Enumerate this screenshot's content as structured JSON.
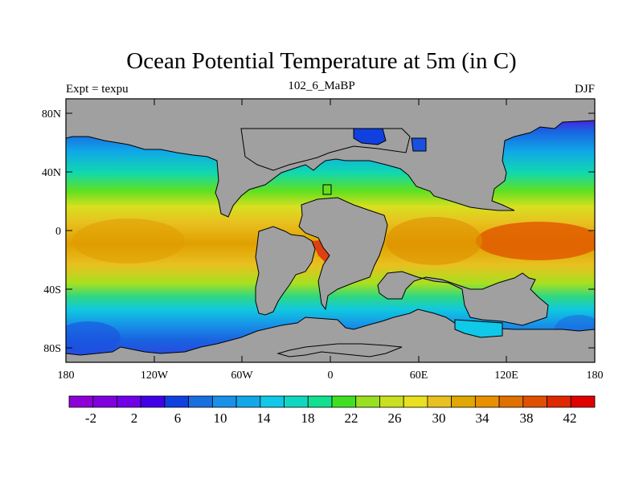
{
  "figure": {
    "title": "Ocean Potential Temperature at 5m (in C)",
    "left_label": "Expt = texpu",
    "center_label": "102_6_MaBP",
    "right_label": "DJF"
  },
  "axes": {
    "lat_ticks": [
      "80N",
      "40N",
      "0",
      "40S",
      "80S"
    ],
    "lon_ticks": [
      "180",
      "120W",
      "60W",
      "0",
      "60E",
      "120E",
      "180"
    ]
  },
  "colorbar": {
    "labels": [
      "-2",
      "2",
      "6",
      "10",
      "14",
      "18",
      "22",
      "26",
      "30",
      "34",
      "38",
      "42"
    ],
    "colors": [
      "#8e00d8",
      "#8000e0",
      "#7000e8",
      "#4000e8",
      "#1040e0",
      "#1870e0",
      "#1a90e8",
      "#10a8e8",
      "#10c8e8",
      "#10d8c0",
      "#10e090",
      "#40e020",
      "#98e020",
      "#c8e020",
      "#e8e020",
      "#e8c020",
      "#e0a800",
      "#e89000",
      "#e07000",
      "#e05000",
      "#e02800",
      "#e00000"
    ]
  },
  "colors": {
    "land": "#a0a0a0",
    "frame": "#000000"
  },
  "chart_data": {
    "type": "heatmap",
    "title": "Ocean Potential Temperature at 5m (in C)",
    "variable": "potential temperature",
    "units": "C",
    "season": "DJF",
    "experiment": "texpu",
    "period": "102_6_MaBP",
    "color_levels": [
      -2,
      2,
      6,
      10,
      14,
      18,
      22,
      26,
      30,
      34,
      38,
      42
    ],
    "x_range": [
      -180,
      180
    ],
    "y_range": [
      -90,
      90
    ],
    "approx_zonal_profile": [
      {
        "lat": 80,
        "temp": -2
      },
      {
        "lat": 60,
        "temp": 10
      },
      {
        "lat": 40,
        "temp": 18
      },
      {
        "lat": 20,
        "temp": 28
      },
      {
        "lat": 0,
        "temp": 34
      },
      {
        "lat": -20,
        "temp": 32
      },
      {
        "lat": -40,
        "temp": 22
      },
      {
        "lat": -60,
        "temp": 6
      },
      {
        "lat": -80,
        "temp": -2
      }
    ]
  }
}
